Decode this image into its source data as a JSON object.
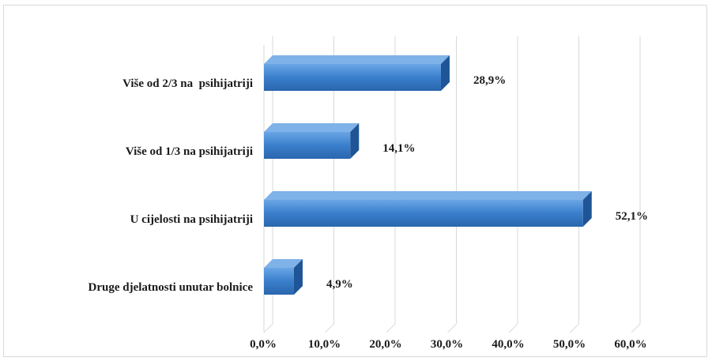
{
  "chart_data": {
    "type": "bar",
    "orientation": "horizontal",
    "categories": [
      "Više od 2/3 na  psihijatriji",
      "Više od 1/3 na psihijatriji",
      "U cijelosti na psihijatriji",
      "Druge djelatnosti unutar bolnice"
    ],
    "values": [
      28.9,
      14.1,
      52.1,
      4.9
    ],
    "value_labels": [
      "28,9%",
      "14,1%",
      "52,1%",
      "4,9%"
    ],
    "xlim": [
      0,
      60
    ],
    "x_ticks": [
      0,
      10,
      20,
      30,
      40,
      50,
      60
    ],
    "x_tick_labels": [
      "0,0%",
      "10,0%",
      "20,0%",
      "30,0%",
      "40,0%",
      "50,0%",
      "60,0%"
    ],
    "grid": true,
    "legend": "none",
    "colors": {
      "bar_front": "#3a7fcc",
      "bar_top": "#7fb2e8",
      "bar_side": "#1f5596",
      "gridline": "#d9d9d9"
    }
  }
}
